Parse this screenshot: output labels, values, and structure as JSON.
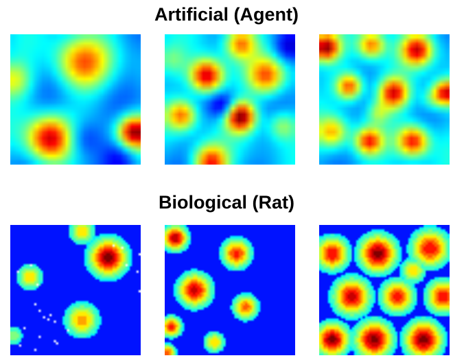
{
  "sections": {
    "artificial": {
      "title": "Artificial (Agent)",
      "maps": [
        {
          "name": "agent-grid-map-1",
          "style": "smooth-blurred",
          "base": 0.3
        },
        {
          "name": "agent-grid-map-2",
          "style": "smooth-blurred",
          "base": 0.3
        },
        {
          "name": "agent-grid-map-3",
          "style": "smooth-blurred",
          "base": 0.32
        }
      ]
    },
    "biological": {
      "title": "Biological (Rat)",
      "maps": [
        {
          "name": "rat-grid-map-1",
          "style": "discrete-fields",
          "base": 0.12,
          "has_white_dots": true
        },
        {
          "name": "rat-grid-map-2",
          "style": "discrete-fields",
          "base": 0.12
        },
        {
          "name": "rat-grid-map-3",
          "style": "discrete-fields",
          "base": 0.12
        }
      ]
    }
  },
  "colormap": "jet",
  "colors": {
    "background": "#ffffff",
    "text": "#000000",
    "dots": "#ffffff"
  }
}
